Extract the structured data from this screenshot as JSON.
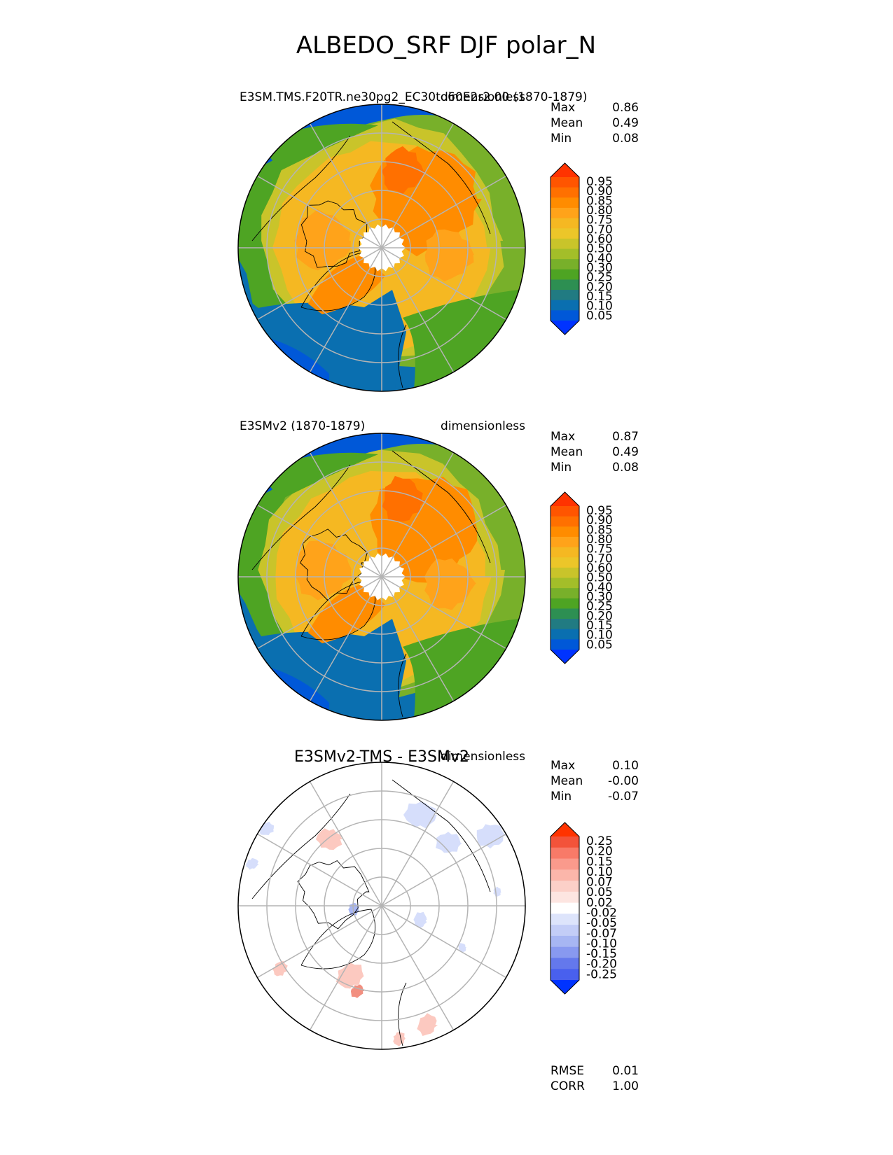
{
  "title": "ALBEDO_SRF DJF polar_N",
  "chart_data": [
    {
      "type": "polar-contour-map",
      "projection": "north polar stereographic",
      "left_title": "E3SM.TMS.F20TR.ne30pg2_EC30to60E2r2.00 (1870-1879)",
      "right_title": "dimensionless",
      "stats": [
        {
          "label": "Max",
          "value": "0.86"
        },
        {
          "label": "Mean",
          "value": "0.49"
        },
        {
          "label": "Min",
          "value": "0.08"
        }
      ],
      "colorbar": {
        "levels": [
          "0.95",
          "0.90",
          "0.85",
          "0.80",
          "0.75",
          "0.70",
          "0.60",
          "0.50",
          "0.40",
          "0.30",
          "0.25",
          "0.20",
          "0.15",
          "0.10",
          "0.05"
        ],
        "colors": [
          "#ff3300",
          "#ff5500",
          "#ff7000",
          "#ff8c00",
          "#ffa31a",
          "#f5b822",
          "#ecc629",
          "#c9c42a",
          "#a3be29",
          "#78b02a",
          "#4ea423",
          "#2d8f52",
          "#217b82",
          "#0a6fb0",
          "#0058d8",
          "#0033ff"
        ],
        "extend": "both"
      },
      "map_fill": {
        "polar_gap_color": "#ffffff",
        "mid_lat_color": "#f5b822",
        "ocean_color": "#0a6fb0",
        "land_high_color": "#ff8c00"
      }
    },
    {
      "type": "polar-contour-map",
      "projection": "north polar stereographic",
      "left_title": "E3SMv2 (1870-1879)",
      "right_title": "dimensionless",
      "stats": [
        {
          "label": "Max",
          "value": "0.87"
        },
        {
          "label": "Mean",
          "value": "0.49"
        },
        {
          "label": "Min",
          "value": "0.08"
        }
      ],
      "colorbar": {
        "levels": [
          "0.95",
          "0.90",
          "0.85",
          "0.80",
          "0.75",
          "0.70",
          "0.60",
          "0.50",
          "0.40",
          "0.30",
          "0.25",
          "0.20",
          "0.15",
          "0.10",
          "0.05"
        ],
        "colors": [
          "#ff3300",
          "#ff5500",
          "#ff7000",
          "#ff8c00",
          "#ffa31a",
          "#f5b822",
          "#ecc629",
          "#c9c42a",
          "#a3be29",
          "#78b02a",
          "#4ea423",
          "#2d8f52",
          "#217b82",
          "#0a6fb0",
          "#0058d8",
          "#0033ff"
        ],
        "extend": "both"
      },
      "map_fill": {
        "polar_gap_color": "#ffffff",
        "mid_lat_color": "#f5b822",
        "ocean_color": "#0a6fb0",
        "land_high_color": "#ff8c00"
      }
    },
    {
      "type": "polar-contour-map",
      "projection": "north polar stereographic",
      "center_title": "E3SMv2-TMS - E3SMv2",
      "right_title": "dimensionless",
      "stats": [
        {
          "label": "Max",
          "value": "0.10"
        },
        {
          "label": "Mean",
          "value": "-0.00"
        },
        {
          "label": "Min",
          "value": "-0.07"
        }
      ],
      "colorbar": {
        "levels": [
          "0.25",
          "0.20",
          "0.15",
          "0.10",
          "0.07",
          "0.05",
          "0.02",
          "-0.02",
          "-0.05",
          "-0.07",
          "-0.10",
          "-0.15",
          "-0.20",
          "-0.25"
        ],
        "colors": [
          "#ff3300",
          "#f3533a",
          "#f87a68",
          "#fa9a8c",
          "#fbb6aa",
          "#fcd0c8",
          "#fde5e1",
          "#ffffff",
          "#dde4fb",
          "#c3cdf7",
          "#a7b6f3",
          "#8899f0",
          "#6478ec",
          "#4960ee",
          "#0033ff"
        ],
        "extend": "both"
      },
      "bottom_stats": [
        {
          "label": "RMSE",
          "value": "0.01"
        },
        {
          "label": "CORR",
          "value": "1.00"
        }
      ],
      "map_fill": {
        "background": "#ffffff",
        "positive_patch_color": "#fcc9c0",
        "negative_patch_color": "#d6defb"
      }
    }
  ]
}
